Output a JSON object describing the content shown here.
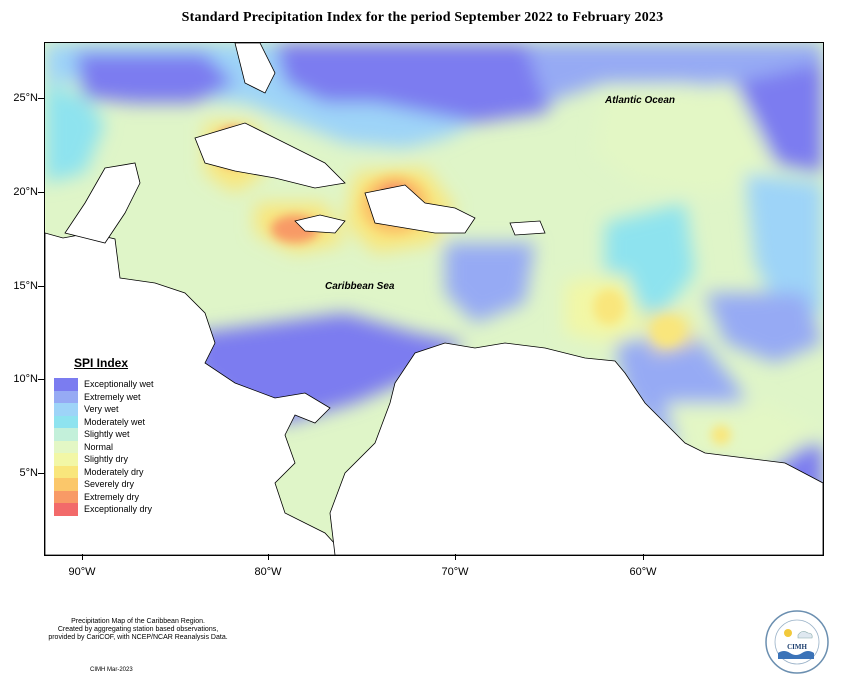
{
  "title": "Standard Precipitation Index for the period September 2022 to February 2023",
  "axes": {
    "lat_labels": [
      "25°N",
      "20°N",
      "15°N",
      "10°N",
      "5°N"
    ],
    "lon_labels": [
      "90°W",
      "80°W",
      "70°W",
      "60°W"
    ]
  },
  "map_labels": {
    "atlantic": "Atlantic Ocean",
    "caribbean": "Caribbean Sea"
  },
  "legend": {
    "title": "SPI Index",
    "items": [
      {
        "label": "Exceptionally wet",
        "color": "#7b7cf0"
      },
      {
        "label": "Extremely wet",
        "color": "#96aaf4"
      },
      {
        "label": "Very wet",
        "color": "#9ed4f8"
      },
      {
        "label": "Moderately wet",
        "color": "#8ee3ef"
      },
      {
        "label": "Slightly wet",
        "color": "#c3f0da"
      },
      {
        "label": "Normal",
        "color": "#e3f7c5"
      },
      {
        "label": "Slightly dry",
        "color": "#f2f7a6"
      },
      {
        "label": "Moderately dry",
        "color": "#f9e67c"
      },
      {
        "label": "Severely dry",
        "color": "#fbc76a"
      },
      {
        "label": "Extremely dry",
        "color": "#f89a66"
      },
      {
        "label": "Exceptionally dry",
        "color": "#f26a6a"
      }
    ]
  },
  "footer": {
    "line1": "Precipitation Map of the Caribbean Region.",
    "line2": "Created by aggregating station based observations,",
    "line3": "provided by CariCOF, with NCEP/NCAR Reanalysis Data.",
    "credit": "CIMH Mar-2023",
    "logo_text": "CIMH"
  }
}
